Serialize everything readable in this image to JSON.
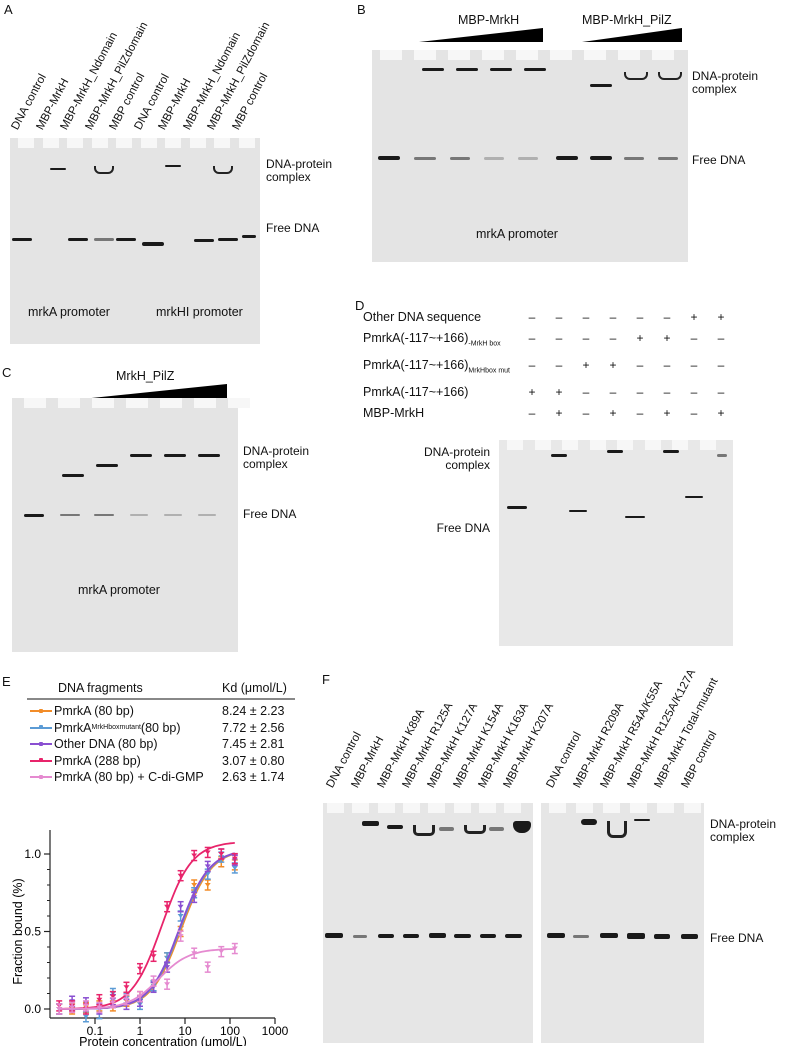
{
  "panels": {
    "A": {
      "letter": "A",
      "lanes": [
        "DNA control",
        "MBP-MrkH",
        "MBP-MrkH_Ndomain",
        "MBP-MrkH_PilZdomain",
        "MBP control",
        "DNA control",
        "MBP-MrkH",
        "MBP-MrkH_Ndomain",
        "MBP-MrkH_PilZdomain",
        "MBP control"
      ],
      "complex_label": "DNA-protein complex",
      "complex_label_line1": "DNA-protein",
      "complex_label_line2": "complex",
      "free_label": "Free DNA",
      "promoter_left": "mrkA promoter",
      "promoter_right": "mrkHI promoter"
    },
    "B": {
      "letter": "B",
      "group_left": "MBP-MrkH",
      "group_right": "MBP-MrkH_PilZ",
      "complex_label_line1": "DNA-protein",
      "complex_label_line2": "complex",
      "free_label": "Free DNA",
      "promoter": "mrkA promoter"
    },
    "C": {
      "letter": "C",
      "group": "MrkH_PilZ",
      "complex_label_line1": "DNA-protein",
      "complex_label_line2": "complex",
      "free_label": "Free DNA",
      "promoter": "mrkA promoter"
    },
    "D": {
      "letter": "D",
      "rows": [
        {
          "label": "Other DNA sequence",
          "sub": "",
          "values": [
            "–",
            "–",
            "–",
            "–",
            "–",
            "–",
            "+",
            "+"
          ]
        },
        {
          "label": "PmrkA(-117~+166)",
          "sub": "-MrkH box",
          "values": [
            "–",
            "–",
            "–",
            "–",
            "+",
            "+",
            "–",
            "–"
          ]
        },
        {
          "label": "PmrkA(-117~+166)",
          "sub": "MrkHbox mut",
          "values": [
            "–",
            "–",
            "+",
            "+",
            "–",
            "–",
            "–",
            "–"
          ]
        },
        {
          "label": "PmrkA(-117~+166)",
          "sub": "",
          "values": [
            "+",
            "+",
            "–",
            "–",
            "–",
            "–",
            "–",
            "–"
          ]
        },
        {
          "label": "MBP-MrkH",
          "sub": "",
          "values": [
            "–",
            "+",
            "–",
            "+",
            "–",
            "+",
            "–",
            "+"
          ]
        }
      ],
      "complex_label_line1": "DNA-protein",
      "complex_label_line2": "complex",
      "free_label": "Free DNA"
    },
    "E": {
      "letter": "E",
      "table_header_fragment": "DNA fragments",
      "table_header_kd": "Kd (μmol/L)",
      "legend": [
        {
          "name": "PmrkA (80 bp)",
          "sub": "",
          "suffix": "",
          "kd": "8.24 ± 2.23",
          "color": "#f28c28"
        },
        {
          "name": "PmrkA",
          "sub": "MrkHboxmutant",
          "suffix": "(80 bp)",
          "kd": "7.72 ± 2.56",
          "color": "#5b9bd5"
        },
        {
          "name": "Other DNA (80 bp)",
          "sub": "",
          "suffix": "",
          "kd": "7.45 ± 2.81",
          "color": "#8a4fd1"
        },
        {
          "name": "PmrkA (288 bp)",
          "sub": "",
          "suffix": "",
          "kd": "3.07 ± 0.80",
          "color": "#e8246b"
        },
        {
          "name": "PmrkA (80 bp) + C-di-GMP",
          "sub": "",
          "suffix": "",
          "kd": "2.63 ± 1.74",
          "color": "#e58ad0"
        }
      ]
    },
    "F": {
      "letter": "F",
      "lanes_left": [
        "DNA control",
        "MBP-MrkH",
        "MBP-MrkH K89A",
        "MBP-MrkH R125A",
        "MBP-MrkH K127A",
        "MBP-MrkH K154A",
        "MBP-MrkH K163A",
        "MBP-MrkH K207A"
      ],
      "lanes_right": [
        "DNA control",
        "MBP-MrkH R209A",
        "MBP-MrkH R54A/K55A",
        "MBP-MrkH R125A/K127A",
        "MBP-MrkH Total-mutant",
        "MBP control"
      ],
      "complex_label_line1": "DNA-protein",
      "complex_label_line2": "complex",
      "free_label": "Free DNA"
    }
  },
  "chart_data": {
    "type": "scatter",
    "title": "",
    "xlabel": "Protein concentration (μmol/L)",
    "ylabel": "Fraction bound (%)",
    "xscale": "log",
    "xlim": [
      0.01,
      1000
    ],
    "ylim": [
      -0.05,
      1.1
    ],
    "xticks": [
      "0.1",
      "1",
      "10",
      "100",
      "1000"
    ],
    "yticks": [
      "0.0",
      "0.5",
      "1.0"
    ],
    "grid": false,
    "legend_position": "top (table)",
    "x": [
      0.016,
      0.031,
      0.063,
      0.125,
      0.25,
      0.5,
      1,
      2,
      4,
      8,
      16,
      32,
      64,
      128
    ],
    "series": [
      {
        "name": "PmrkA (80 bp)",
        "kd": 8.24,
        "color": "#f28c28",
        "values": [
          0.0,
          0.0,
          0.01,
          0.02,
          0.02,
          0.05,
          0.08,
          0.15,
          0.33,
          0.5,
          0.8,
          0.8,
          0.95,
          0.93
        ]
      },
      {
        "name": "PmrkA MrkHboxmutant (80 bp)",
        "kd": 7.72,
        "color": "#5b9bd5",
        "values": [
          0.0,
          0.02,
          -0.05,
          -0.03,
          0.1,
          0.07,
          0.03,
          0.15,
          0.33,
          0.6,
          0.75,
          0.87,
          0.98,
          0.91
        ]
      },
      {
        "name": "Other DNA (80 bp)",
        "kd": 7.45,
        "color": "#8a4fd1",
        "values": [
          0.0,
          0.05,
          0.04,
          0.0,
          0.06,
          0.03,
          0.05,
          0.14,
          0.27,
          0.66,
          0.72,
          0.92,
          1.0,
          0.96
        ]
      },
      {
        "name": "PmrkA (288 bp)",
        "kd": 3.07,
        "color": "#e8246b",
        "values": [
          0.02,
          0.02,
          0.0,
          0.06,
          0.08,
          0.14,
          0.26,
          0.34,
          0.66,
          0.86,
          0.99,
          1.01,
          1.0,
          0.97
        ]
      },
      {
        "name": "PmrkA (80 bp) + C-di-GMP",
        "kd": 2.63,
        "color": "#e58ad0",
        "values": [
          0.0,
          0.01,
          0.02,
          0.01,
          0.04,
          0.06,
          0.08,
          0.18,
          0.16,
          0.47,
          0.36,
          0.27,
          0.37,
          0.39
        ]
      }
    ]
  }
}
